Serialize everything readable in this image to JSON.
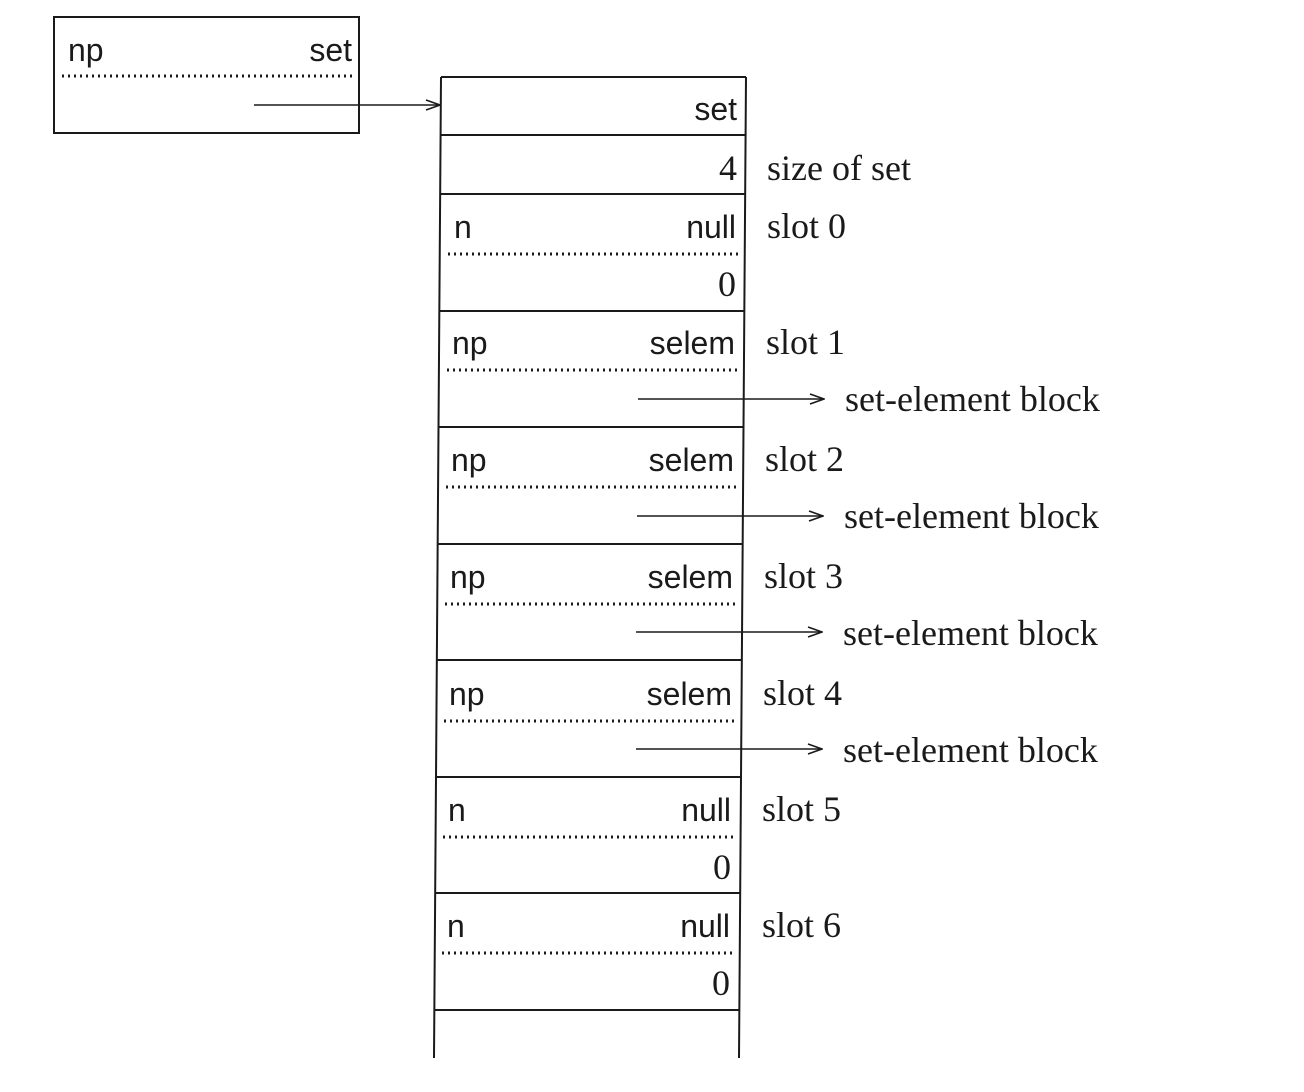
{
  "descriptor": {
    "tag_left": "np",
    "tag_right": "set"
  },
  "block": {
    "header": "set",
    "size_value": "4",
    "size_label": "size of set",
    "slots": [
      {
        "tag_left": "n",
        "tag_right": "null",
        "value": "0",
        "label": "slot 0"
      },
      {
        "tag_left": "np",
        "tag_right": "selem",
        "pointer_label": "set-element block",
        "label": "slot 1"
      },
      {
        "tag_left": "np",
        "tag_right": "selem",
        "pointer_label": "set-element block",
        "label": "slot 2"
      },
      {
        "tag_left": "np",
        "tag_right": "selem",
        "pointer_label": "set-element block",
        "label": "slot 3"
      },
      {
        "tag_left": "np",
        "tag_right": "selem",
        "pointer_label": "set-element block",
        "label": "slot 4"
      },
      {
        "tag_left": "n",
        "tag_right": "null",
        "value": "0",
        "label": "slot 5"
      },
      {
        "tag_left": "n",
        "tag_right": "null",
        "value": "0",
        "label": "slot 6"
      }
    ]
  }
}
